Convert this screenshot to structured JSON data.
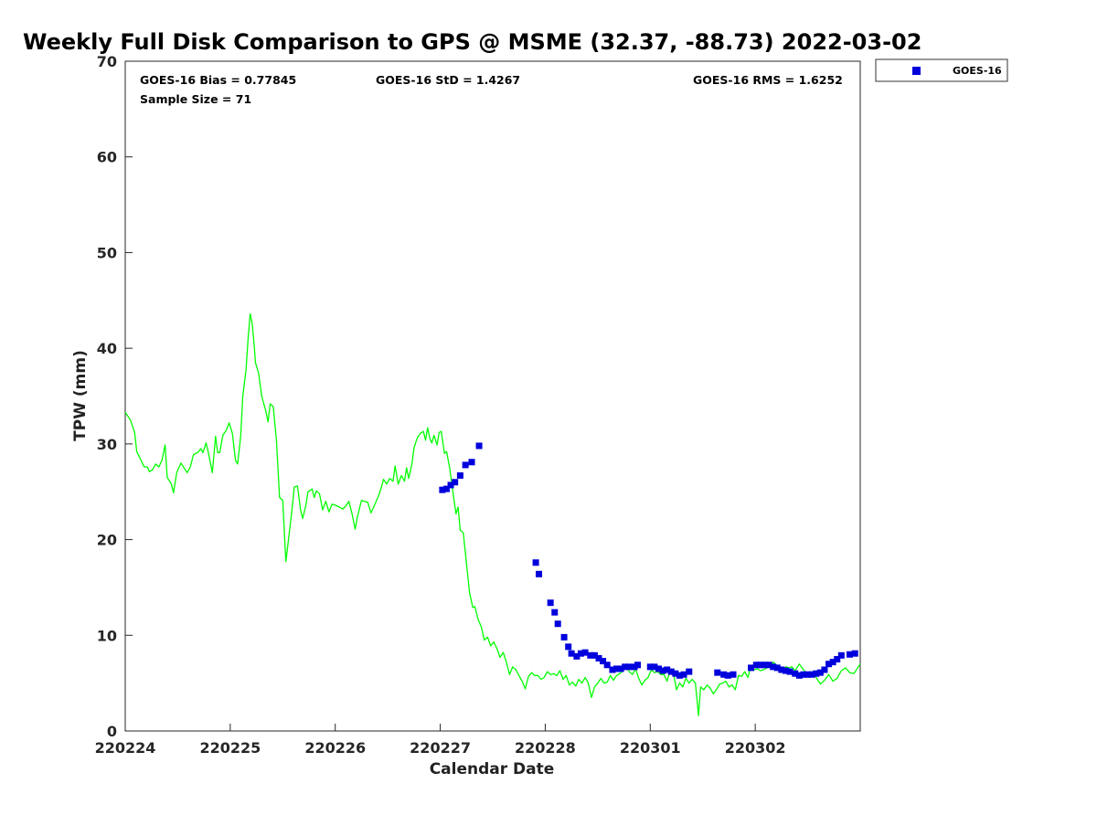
{
  "chart_data": {
    "type": "scatter",
    "title": "Weekly Full Disk Comparison to GPS @ MSME (32.37, -88.73) 2022-03-02",
    "xlabel": "Calendar Date",
    "ylabel": "TPW (mm)",
    "xlim": [
      0,
      7
    ],
    "ylim": [
      0,
      70
    ],
    "x_ticks": [
      {
        "value": 0,
        "label": "220224"
      },
      {
        "value": 1,
        "label": "220225"
      },
      {
        "value": 2,
        "label": "220226"
      },
      {
        "value": 3,
        "label": "220227"
      },
      {
        "value": 4,
        "label": "220228"
      },
      {
        "value": 5,
        "label": "220301"
      },
      {
        "value": 6,
        "label": "220302"
      }
    ],
    "y_ticks": [
      0,
      10,
      20,
      30,
      40,
      50,
      60,
      70
    ],
    "grid": false,
    "stats": {
      "bias": "GOES-16 Bias = 0.77845",
      "std": "GOES-16 StD = 1.4267",
      "rms": "GOES-16 RMS = 1.6252",
      "sample": "Sample Size = 71"
    },
    "legend": {
      "position": "top-right",
      "entries": [
        {
          "name": "GOES-16",
          "color": "#0000dd",
          "marker": "square"
        }
      ]
    },
    "series": [
      {
        "name": "GPS",
        "kind": "line",
        "color": "#00ff00",
        "points": [
          [
            0.0,
            33.3
          ],
          [
            0.05,
            32.5
          ],
          [
            0.09,
            31.2
          ],
          [
            0.11,
            29.2
          ],
          [
            0.15,
            28.3
          ],
          [
            0.18,
            27.6
          ],
          [
            0.21,
            27.6
          ],
          [
            0.23,
            27.1
          ],
          [
            0.26,
            27.3
          ],
          [
            0.29,
            27.9
          ],
          [
            0.32,
            27.6
          ],
          [
            0.35,
            28.3
          ],
          [
            0.38,
            29.9
          ],
          [
            0.4,
            26.5
          ],
          [
            0.44,
            25.8
          ],
          [
            0.46,
            24.9
          ],
          [
            0.49,
            27.0
          ],
          [
            0.53,
            28.0
          ],
          [
            0.56,
            27.5
          ],
          [
            0.59,
            27.0
          ],
          [
            0.62,
            27.6
          ],
          [
            0.65,
            28.9
          ],
          [
            0.69,
            29.1
          ],
          [
            0.72,
            29.5
          ],
          [
            0.74,
            29.1
          ],
          [
            0.77,
            30.1
          ],
          [
            0.79,
            29.2
          ],
          [
            0.83,
            27.0
          ],
          [
            0.86,
            30.8
          ],
          [
            0.88,
            29.1
          ],
          [
            0.9,
            29.1
          ],
          [
            0.93,
            30.9
          ],
          [
            0.96,
            31.4
          ],
          [
            0.99,
            32.2
          ],
          [
            1.02,
            31.1
          ],
          [
            1.05,
            28.3
          ],
          [
            1.07,
            27.9
          ],
          [
            1.1,
            30.8
          ],
          [
            1.12,
            35.0
          ],
          [
            1.15,
            37.7
          ],
          [
            1.17,
            41.0
          ],
          [
            1.19,
            43.6
          ],
          [
            1.21,
            42.5
          ],
          [
            1.23,
            40.0
          ],
          [
            1.24,
            38.5
          ],
          [
            1.27,
            37.4
          ],
          [
            1.3,
            35.0
          ],
          [
            1.34,
            33.4
          ],
          [
            1.36,
            32.3
          ],
          [
            1.38,
            34.2
          ],
          [
            1.41,
            33.9
          ],
          [
            1.44,
            30.4
          ],
          [
            1.47,
            24.4
          ],
          [
            1.5,
            24.1
          ],
          [
            1.53,
            17.7
          ],
          [
            1.56,
            20.5
          ],
          [
            1.59,
            23.3
          ],
          [
            1.61,
            25.5
          ],
          [
            1.64,
            25.6
          ],
          [
            1.67,
            23.1
          ],
          [
            1.69,
            22.2
          ],
          [
            1.72,
            23.6
          ],
          [
            1.74,
            25.0
          ],
          [
            1.78,
            25.3
          ],
          [
            1.8,
            24.4
          ],
          [
            1.82,
            25.1
          ],
          [
            1.85,
            24.8
          ],
          [
            1.88,
            23.1
          ],
          [
            1.91,
            24.0
          ],
          [
            1.94,
            22.9
          ],
          [
            1.97,
            23.7
          ],
          [
            2.0,
            23.6
          ],
          [
            2.04,
            23.4
          ],
          [
            2.07,
            23.2
          ],
          [
            2.1,
            23.5
          ],
          [
            2.13,
            24.0
          ],
          [
            2.16,
            22.7
          ],
          [
            2.19,
            21.1
          ],
          [
            2.21,
            22.3
          ],
          [
            2.25,
            24.1
          ],
          [
            2.28,
            24.0
          ],
          [
            2.31,
            23.9
          ],
          [
            2.34,
            22.8
          ],
          [
            2.37,
            23.5
          ],
          [
            2.41,
            24.5
          ],
          [
            2.44,
            25.5
          ],
          [
            2.46,
            26.3
          ],
          [
            2.49,
            25.8
          ],
          [
            2.52,
            26.4
          ],
          [
            2.55,
            26.1
          ],
          [
            2.57,
            27.7
          ],
          [
            2.6,
            25.8
          ],
          [
            2.63,
            26.7
          ],
          [
            2.66,
            26.1
          ],
          [
            2.68,
            27.5
          ],
          [
            2.7,
            26.4
          ],
          [
            2.73,
            27.9
          ],
          [
            2.75,
            29.6
          ],
          [
            2.78,
            30.6
          ],
          [
            2.81,
            31.1
          ],
          [
            2.84,
            31.3
          ],
          [
            2.86,
            30.4
          ],
          [
            2.88,
            31.7
          ],
          [
            2.9,
            30.6
          ],
          [
            2.92,
            30.1
          ],
          [
            2.94,
            30.9
          ],
          [
            2.97,
            29.9
          ],
          [
            2.99,
            31.2
          ],
          [
            3.01,
            31.3
          ],
          [
            3.04,
            29.0
          ],
          [
            3.06,
            29.2
          ],
          [
            3.09,
            27.5
          ],
          [
            3.12,
            25.0
          ],
          [
            3.15,
            22.7
          ],
          [
            3.17,
            23.4
          ],
          [
            3.19,
            21.0
          ],
          [
            3.22,
            20.7
          ],
          [
            3.25,
            17.5
          ],
          [
            3.28,
            14.4
          ],
          [
            3.31,
            12.9
          ],
          [
            3.33,
            13.0
          ],
          [
            3.36,
            11.7
          ],
          [
            3.39,
            10.9
          ],
          [
            3.42,
            9.5
          ],
          [
            3.45,
            9.8
          ],
          [
            3.48,
            8.9
          ],
          [
            3.51,
            9.3
          ],
          [
            3.54,
            8.6
          ],
          [
            3.57,
            7.7
          ],
          [
            3.6,
            8.2
          ],
          [
            3.63,
            7.2
          ],
          [
            3.66,
            5.9
          ],
          [
            3.69,
            6.7
          ],
          [
            3.72,
            6.4
          ],
          [
            3.75,
            5.8
          ],
          [
            3.78,
            5.2
          ],
          [
            3.81,
            4.4
          ],
          [
            3.84,
            5.7
          ],
          [
            3.87,
            6.1
          ],
          [
            3.9,
            5.8
          ],
          [
            3.93,
            5.8
          ],
          [
            3.96,
            5.4
          ],
          [
            3.99,
            5.6
          ],
          [
            4.02,
            6.2
          ],
          [
            4.05,
            5.9
          ],
          [
            4.08,
            6.0
          ],
          [
            4.11,
            5.8
          ],
          [
            4.14,
            6.3
          ],
          [
            4.17,
            5.4
          ],
          [
            4.2,
            5.8
          ],
          [
            4.23,
            4.8
          ],
          [
            4.26,
            5.1
          ],
          [
            4.29,
            4.7
          ],
          [
            4.32,
            5.4
          ],
          [
            4.35,
            5.0
          ],
          [
            4.38,
            5.6
          ],
          [
            4.41,
            5.0
          ],
          [
            4.44,
            3.5
          ],
          [
            4.47,
            4.6
          ],
          [
            4.5,
            5.0
          ],
          [
            4.53,
            5.5
          ],
          [
            4.56,
            5.0
          ],
          [
            4.59,
            5.1
          ],
          [
            4.62,
            5.8
          ],
          [
            4.65,
            5.3
          ],
          [
            4.68,
            5.8
          ],
          [
            4.71,
            6.0
          ],
          [
            4.74,
            6.3
          ],
          [
            4.77,
            6.8
          ],
          [
            4.8,
            6.2
          ],
          [
            4.83,
            5.9
          ],
          [
            4.86,
            6.5
          ],
          [
            4.89,
            5.5
          ],
          [
            4.92,
            4.8
          ],
          [
            4.95,
            5.3
          ],
          [
            4.98,
            5.6
          ],
          [
            5.01,
            6.4
          ],
          [
            5.04,
            6.1
          ],
          [
            5.07,
            6.2
          ],
          [
            5.1,
            5.9
          ],
          [
            5.13,
            5.9
          ],
          [
            5.16,
            5.2
          ],
          [
            5.19,
            6.4
          ],
          [
            5.22,
            6.1
          ],
          [
            5.25,
            4.3
          ],
          [
            5.28,
            5.0
          ],
          [
            5.31,
            4.6
          ],
          [
            5.34,
            5.5
          ],
          [
            5.37,
            5.0
          ],
          [
            5.4,
            5.4
          ],
          [
            5.43,
            5.0
          ],
          [
            5.46,
            1.6
          ],
          [
            5.48,
            4.6
          ],
          [
            5.51,
            4.3
          ],
          [
            5.54,
            4.8
          ],
          [
            5.57,
            4.5
          ],
          [
            5.6,
            3.9
          ],
          [
            5.63,
            4.3
          ],
          [
            5.66,
            4.9
          ],
          [
            5.69,
            5.0
          ],
          [
            5.72,
            5.2
          ],
          [
            5.75,
            4.6
          ],
          [
            5.78,
            4.8
          ],
          [
            5.81,
            4.3
          ],
          [
            5.84,
            5.8
          ],
          [
            5.87,
            5.7
          ],
          [
            5.9,
            6.2
          ],
          [
            5.93,
            5.6
          ],
          [
            5.96,
            6.8
          ],
          [
            5.99,
            6.4
          ],
          [
            6.02,
            6.5
          ],
          [
            6.05,
            6.3
          ],
          [
            6.08,
            6.4
          ],
          [
            6.11,
            6.6
          ],
          [
            6.14,
            6.8
          ],
          [
            6.17,
            7.2
          ],
          [
            6.2,
            6.9
          ],
          [
            6.23,
            6.8
          ],
          [
            6.26,
            6.4
          ],
          [
            6.29,
            6.7
          ],
          [
            6.32,
            6.6
          ],
          [
            6.35,
            6.7
          ],
          [
            6.38,
            6.3
          ],
          [
            6.42,
            7.0
          ],
          [
            6.46,
            6.4
          ],
          [
            6.5,
            5.9
          ],
          [
            6.54,
            6.2
          ],
          [
            6.58,
            5.6
          ],
          [
            6.62,
            4.9
          ],
          [
            6.66,
            5.3
          ],
          [
            6.7,
            5.9
          ],
          [
            6.74,
            5.2
          ],
          [
            6.78,
            5.5
          ],
          [
            6.82,
            6.3
          ],
          [
            6.86,
            6.6
          ],
          [
            6.9,
            6.1
          ],
          [
            6.94,
            6.0
          ],
          [
            7.0,
            7.0
          ]
        ]
      },
      {
        "name": "GOES-16",
        "kind": "scatter",
        "color": "#0000dd",
        "points": [
          [
            3.02,
            25.2
          ],
          [
            3.06,
            25.3
          ],
          [
            3.1,
            25.7
          ],
          [
            3.14,
            26.0
          ],
          [
            3.19,
            26.7
          ],
          [
            3.24,
            27.8
          ],
          [
            3.3,
            28.1
          ],
          [
            3.37,
            29.8
          ],
          [
            3.91,
            17.6
          ],
          [
            3.94,
            16.4
          ],
          [
            4.05,
            13.4
          ],
          [
            4.09,
            12.4
          ],
          [
            4.12,
            11.2
          ],
          [
            4.18,
            9.8
          ],
          [
            4.22,
            8.8
          ],
          [
            4.25,
            8.1
          ],
          [
            4.3,
            7.8
          ],
          [
            4.34,
            8.1
          ],
          [
            4.38,
            8.2
          ],
          [
            4.43,
            7.9
          ],
          [
            4.47,
            7.9
          ],
          [
            4.51,
            7.6
          ],
          [
            4.55,
            7.3
          ],
          [
            4.59,
            6.9
          ],
          [
            4.64,
            6.4
          ],
          [
            4.68,
            6.5
          ],
          [
            4.72,
            6.5
          ],
          [
            4.76,
            6.7
          ],
          [
            4.8,
            6.7
          ],
          [
            4.85,
            6.7
          ],
          [
            4.88,
            6.9
          ],
          [
            5.0,
            6.7
          ],
          [
            5.04,
            6.7
          ],
          [
            5.08,
            6.5
          ],
          [
            5.12,
            6.3
          ],
          [
            5.16,
            6.4
          ],
          [
            5.2,
            6.2
          ],
          [
            5.24,
            6.0
          ],
          [
            5.28,
            5.8
          ],
          [
            5.32,
            5.9
          ],
          [
            5.37,
            6.2
          ],
          [
            5.64,
            6.1
          ],
          [
            5.7,
            5.9
          ],
          [
            5.74,
            5.8
          ],
          [
            5.79,
            5.9
          ],
          [
            5.96,
            6.6
          ],
          [
            6.01,
            6.9
          ],
          [
            6.05,
            6.9
          ],
          [
            6.09,
            6.9
          ],
          [
            6.13,
            6.9
          ],
          [
            6.17,
            6.7
          ],
          [
            6.21,
            6.6
          ],
          [
            6.25,
            6.4
          ],
          [
            6.29,
            6.3
          ],
          [
            6.33,
            6.2
          ],
          [
            6.38,
            6.0
          ],
          [
            6.42,
            5.8
          ],
          [
            6.46,
            5.9
          ],
          [
            6.5,
            5.9
          ],
          [
            6.54,
            5.9
          ],
          [
            6.58,
            6.0
          ],
          [
            6.62,
            6.1
          ],
          [
            6.66,
            6.4
          ],
          [
            6.7,
            7.0
          ],
          [
            6.74,
            7.2
          ],
          [
            6.78,
            7.5
          ],
          [
            6.82,
            7.9
          ],
          [
            6.9,
            8.0
          ],
          [
            6.95,
            8.1
          ]
        ]
      }
    ]
  }
}
